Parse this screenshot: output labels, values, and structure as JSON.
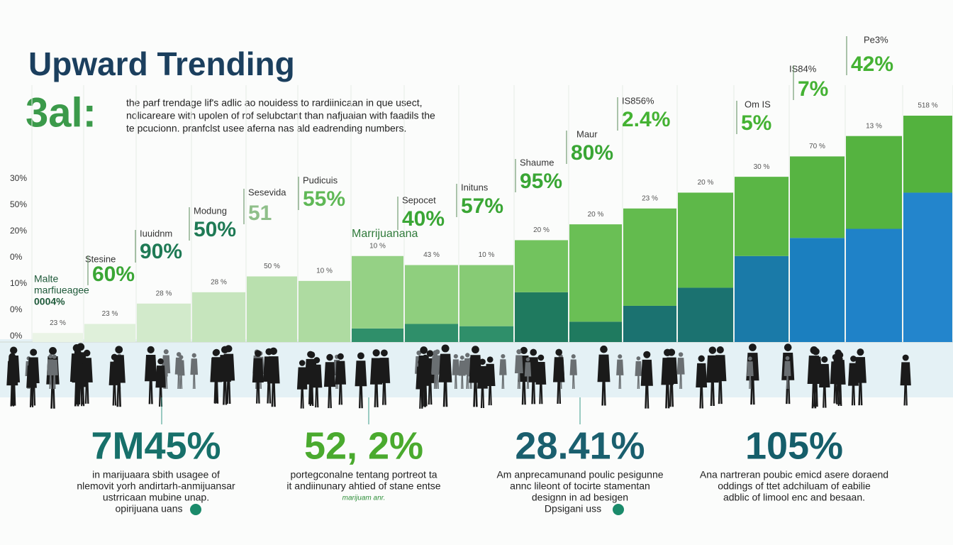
{
  "chart_data": {
    "type": "stacked-bar",
    "title": "Upward Trending",
    "logo": "3al:",
    "subtitle": [
      "the parf trendage lif's adlic ao nouidess to rardiinicaan in que usect,",
      "nolicareare with upolen of rof selubctant than nafjuaian with faadils  the",
      "te pcucionn. pranfclst usee aferna nas ald eadrending numbers."
    ],
    "axis_labels": [
      "30%",
      "50%",
      "20%",
      "0%",
      "10%",
      "0%",
      "0%"
    ],
    "ylim": [
      0,
      100
    ],
    "series": [
      {
        "values": [
          0,
          0,
          0,
          0,
          0,
          0,
          6,
          8,
          7,
          22,
          9,
          16,
          24,
          38,
          46,
          50,
          66
        ],
        "colors": [
          "#2f8f6a",
          "#2f8f6a",
          "#2f8f6a",
          "#2f8f6a",
          "#2f8f6a",
          "#2f8f6a",
          "#2f8f6a",
          "#2f8f6a",
          "#2f8f6a",
          "#1f7a5f",
          "#1f7a5f",
          "#1b7270",
          "#1b7270",
          "#1a7aa8",
          "#1b7fbf",
          "#1f82c8",
          "#2385cc"
        ]
      },
      {
        "values": [
          4,
          8,
          17,
          22,
          29,
          27,
          32,
          26,
          27,
          23,
          43,
          43,
          42,
          35,
          36,
          41,
          34
        ],
        "colors": [
          "#eaf4e6",
          "#dff0da",
          "#d2eacb",
          "#c6e5bd",
          "#b9e0ae",
          "#aedba1",
          "#95d185",
          "#8fcf7e",
          "#87cb75",
          "#72c35e",
          "#6abf55",
          "#63bb4e",
          "#5eb849",
          "#5ab645",
          "#57b442",
          "#55b340",
          "#53b23e"
        ]
      }
    ],
    "bar_labels": [
      "23 %",
      "23 %",
      "28 %",
      "28 %",
      "50 %",
      "10 %",
      "10 %",
      "43 %",
      "10 %",
      "20 %",
      "20 %",
      "23 %",
      "20 %",
      "30 %",
      "70 %",
      "13 %",
      "518 %"
    ],
    "annotations": [
      {
        "caption": "Stesine",
        "value": "60%"
      },
      {
        "caption": "Iuuidnm",
        "value": "90%"
      },
      {
        "caption": "Modung",
        "value": "50%"
      },
      {
        "caption": "Sesevida",
        "value": "51"
      },
      {
        "caption": "Pudicuis",
        "value": "55%"
      },
      {
        "caption": "Sepocet",
        "value": "40%"
      },
      {
        "caption": "Inituns",
        "value": "57%"
      },
      {
        "caption": "Shaume",
        "value": "95%"
      },
      {
        "caption": "Maur",
        "value": "80%"
      },
      {
        "caption": "IS856%",
        "value": "2.4%"
      },
      {
        "caption": "Om IS",
        "value": "5%"
      },
      {
        "caption": "IS84%",
        "value": "7%"
      },
      {
        "caption": "Pe3%",
        "value": "42%"
      }
    ],
    "side_note": [
      "Malte",
      "marfiueagee",
      "0004%"
    ],
    "bar_tag": "Marrijuanana",
    "stats": [
      {
        "value": "7M45%",
        "lines": [
          "in marijuaara sbith usagee of",
          "nlemovit yorh andirtarh-anmijuansar",
          "ustrricaan mubine unap.",
          "opirijuana uans"
        ]
      },
      {
        "value": "52, 2%",
        "lines": [
          "portegconalne tentang portreot ta",
          "it andiinunary ahtied of stane entse",
          "marijuam anr."
        ]
      },
      {
        "value": "28.41%",
        "lines": [
          "Am anprecamunand poulic pesigunne",
          "annc lileont of tocirte stamentan",
          "designn in ad besigen",
          "Dpsigani uss"
        ]
      },
      {
        "value": "105%",
        "lines": [
          "Ana  nartreran poubic emicd asere doraend",
          "oddings of ttet adchiluam of eabilie",
          "adblic of limool enc and besaan."
        ]
      }
    ]
  }
}
